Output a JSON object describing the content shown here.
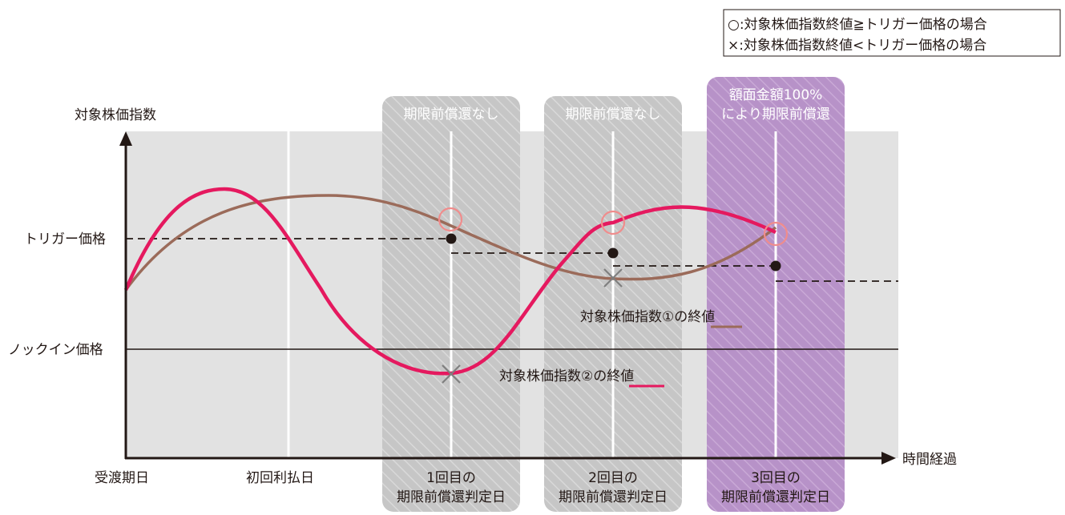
{
  "legend": {
    "circle_line": "○:対象株価指数終値≧トリガー価格の場合",
    "cross_line": "×:対象株価指数終値<トリガー価格の場合"
  },
  "axes": {
    "y_title": "対象株価指数",
    "trigger_label": "トリガー価格",
    "knockin_label": "ノックイン価格",
    "x_title": "時間経過"
  },
  "x_ticks": {
    "start": "受渡期日",
    "first_interest": "初回利払日"
  },
  "periods": [
    {
      "status": [
        "期限前償還なし"
      ],
      "date_label": [
        "1回目の",
        "期限前償還判定日"
      ],
      "redeemed": false
    },
    {
      "status": [
        "期限前償還なし"
      ],
      "date_label": [
        "2回目の",
        "期限前償還判定日"
      ],
      "redeemed": false
    },
    {
      "status": [
        "額面金額100%",
        "により期限前償還"
      ],
      "date_label": [
        "3回目の",
        "期限前償還判定日"
      ],
      "redeemed": true
    }
  ],
  "series": [
    {
      "name": "対象株価指数①の終値",
      "color": "#9b6b5a",
      "emphasis": "終値"
    },
    {
      "name": "対象株価指数②の終値",
      "color": "#e5195f",
      "emphasis": "終値"
    }
  ],
  "colors": {
    "background": "#e2e2e2",
    "judgment_band": "#c5c5c5",
    "redemption_band": "#b38fc4",
    "axis": "#231815",
    "marker_circle": "#f08c8c",
    "marker_cross": "#7f7f7f"
  }
}
